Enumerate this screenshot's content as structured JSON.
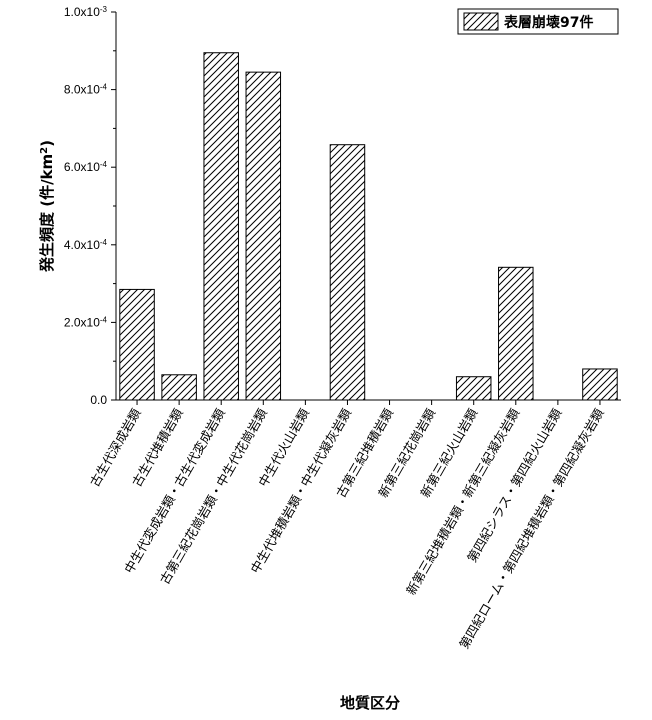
{
  "chart_data": {
    "type": "bar",
    "categories": [
      "古生代深成岩類",
      "古生代堆積岩類",
      "中生代変成岩類・古生代変成岩類",
      "古第三紀花崗岩類・中生代花崗岩類",
      "中生代火山岩類",
      "中生代堆積岩類・中生代凝灰岩類",
      "古第三紀堆積岩類",
      "新第三紀花崗岩類",
      "新第三紀火山岩類",
      "新第三紀堆積岩類・新第三紀凝灰岩類",
      "第四紀シラス・第四紀火山岩類",
      "第四紀ローム・第四紀堆積岩類・第四紀凝灰岩類"
    ],
    "series": [
      {
        "name": "表層崩壊97件",
        "values": [
          0.000285,
          6.5e-05,
          0.000895,
          0.000845,
          0,
          0.000658,
          0,
          0,
          6e-05,
          0.000342,
          0,
          8e-05
        ]
      }
    ],
    "ylim": [
      0,
      0.001
    ],
    "yticks": [
      {
        "value": 0,
        "label": "0.0"
      },
      {
        "value": 0.0002,
        "label": "2.0x10",
        "exp": "-4"
      },
      {
        "value": 0.0004,
        "label": "4.0x10",
        "exp": "-4"
      },
      {
        "value": 0.0006,
        "label": "6.0x10",
        "exp": "-4"
      },
      {
        "value": 0.0008,
        "label": "8.0x10",
        "exp": "-4"
      },
      {
        "value": 0.001,
        "label": "1.0x10",
        "exp": "-3"
      }
    ],
    "xlabel": "地質区分",
    "ylabel_main": "発生頻度 (件/km",
    "ylabel_sup": "2",
    "ylabel_end": ")",
    "legend_position": "top-right",
    "bar_fill": "diagonal-hatch",
    "bar_color": "#000000"
  }
}
